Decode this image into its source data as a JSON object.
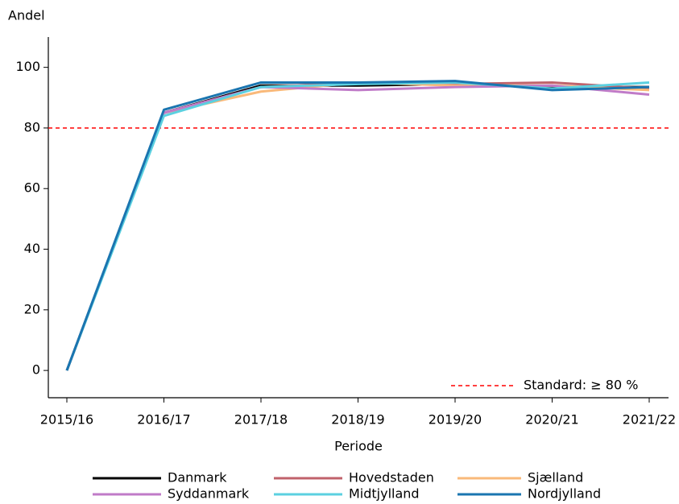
{
  "chart_data": {
    "type": "line",
    "ylabel": "Andel",
    "xlabel": "Periode",
    "categories": [
      "2015/16",
      "2016/17",
      "2017/18",
      "2018/19",
      "2019/20",
      "2020/21",
      "2021/22"
    ],
    "series": [
      {
        "name": "Danmark",
        "color": "#000000",
        "values": [
          0,
          85,
          94,
          94,
          94.5,
          93.5,
          93.5
        ]
      },
      {
        "name": "Hovedstaden",
        "color": "#c0626b",
        "values": [
          0,
          85,
          93.5,
          95,
          94.5,
          95,
          93
        ]
      },
      {
        "name": "Sjælland",
        "color": "#f9b97a",
        "values": [
          0,
          85,
          92,
          95,
          94,
          94,
          92.5
        ]
      },
      {
        "name": "Syddanmark",
        "color": "#c07bc8",
        "values": [
          0,
          85,
          93.5,
          92.5,
          93.5,
          94,
          91
        ]
      },
      {
        "name": "Midtjylland",
        "color": "#5bd0e0",
        "values": [
          0,
          84,
          93.5,
          94.5,
          95,
          93,
          95
        ]
      },
      {
        "name": "Nordjylland",
        "color": "#1a75b0",
        "values": [
          0,
          86,
          95,
          95,
          95.5,
          92.5,
          93.5
        ]
      }
    ],
    "reference_line": {
      "value": 80,
      "label": "Standard: ≥ 80 %",
      "color": "#ff0000"
    },
    "ylim": [
      -9,
      110
    ],
    "yticks": [
      0,
      20,
      40,
      60,
      80,
      100
    ],
    "grid": false,
    "legend": "bottom"
  }
}
